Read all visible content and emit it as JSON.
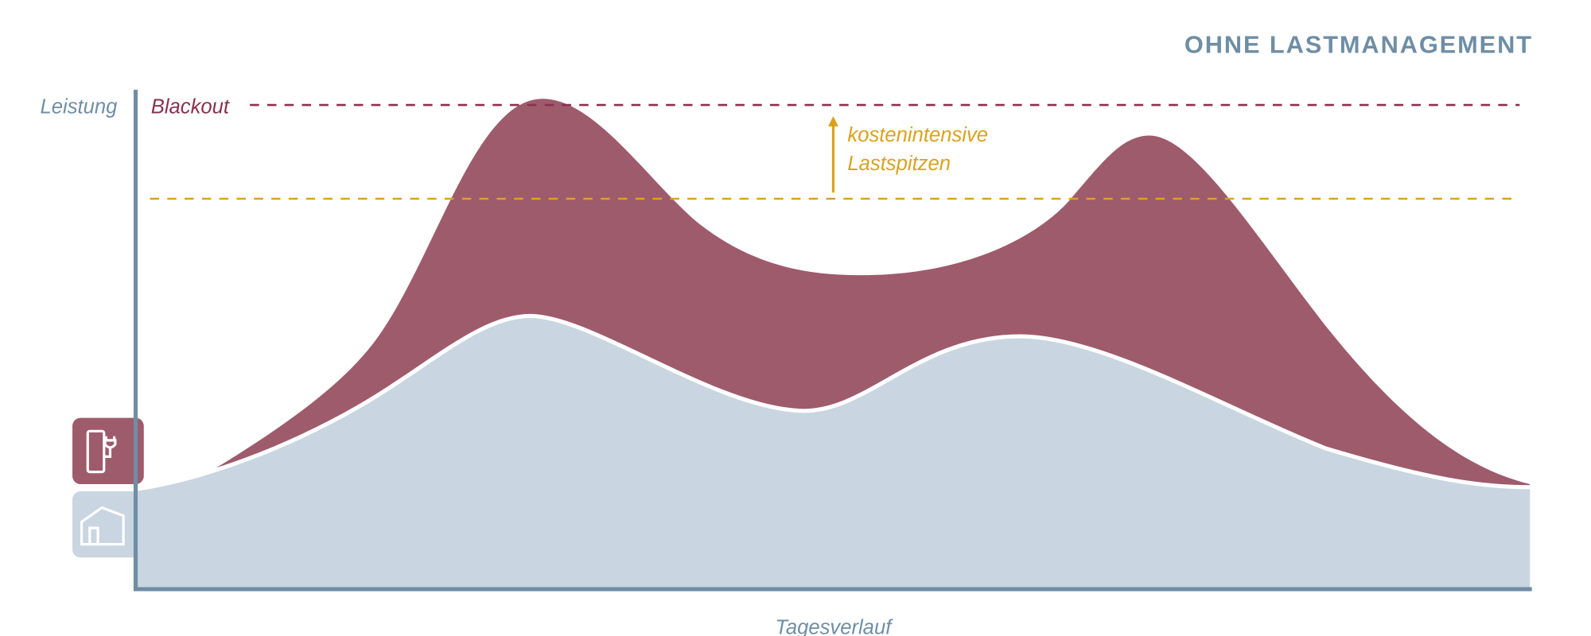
{
  "header": {
    "title": "OHNE LASTMANAGEMENT"
  },
  "axes": {
    "y_label": "Leistung",
    "x_label": "Tagesverlauf"
  },
  "threshold": {
    "label": "Blackout"
  },
  "annotation": {
    "lines": [
      "kostenintensive",
      "Lastspitzen"
    ]
  }
}
